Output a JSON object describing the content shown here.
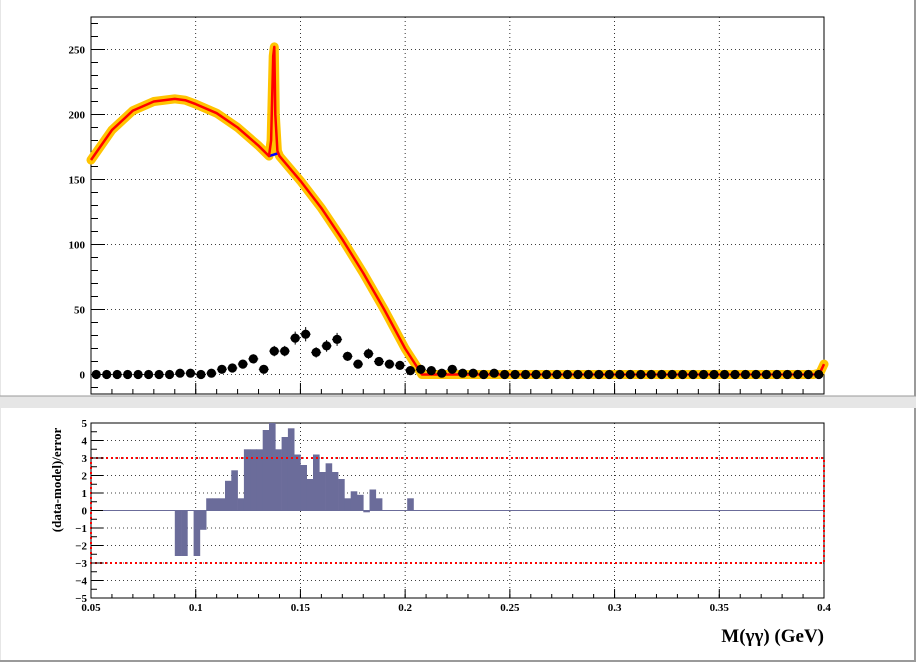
{
  "chart_data": [
    {
      "type": "scatter",
      "panel": "fit",
      "xlim": [
        0.05,
        0.4
      ],
      "ylim": [
        -15,
        275
      ],
      "yticks": [
        0,
        50,
        100,
        150,
        200,
        250
      ],
      "ytick_labels": [
        "0",
        "50",
        "100",
        "150",
        "200",
        "250"
      ],
      "grid": true,
      "title": "",
      "xlabel": "",
      "ylabel": "",
      "series": [
        {
          "kind": "points",
          "color": "#000000",
          "x": [
            0.0525,
            0.0575,
            0.0625,
            0.0675,
            0.0725,
            0.0775,
            0.0825,
            0.0875,
            0.0925,
            0.0975,
            0.1025,
            0.1075,
            0.1125,
            0.1175,
            0.1225,
            0.1275,
            0.1325,
            0.1375,
            0.1425,
            0.1475,
            0.1525,
            0.1575,
            0.1625,
            0.1675,
            0.1725,
            0.1775,
            0.1825,
            0.1875,
            0.1925,
            0.1975,
            0.2025,
            0.2075,
            0.2125,
            0.2175,
            0.2225,
            0.2275,
            0.2325,
            0.2375,
            0.2425,
            0.2475,
            0.2525,
            0.2575,
            0.2625,
            0.2675,
            0.2725,
            0.2775,
            0.2825,
            0.2875,
            0.2925,
            0.2975,
            0.3025,
            0.3075,
            0.3125,
            0.3175,
            0.3225,
            0.3275,
            0.3325,
            0.3375,
            0.3425,
            0.3475,
            0.3525,
            0.3575,
            0.3625,
            0.3675,
            0.3725,
            0.3775,
            0.3825,
            0.3875,
            0.3925,
            0.3975
          ],
          "y": [
            0,
            0,
            0,
            0,
            0,
            0,
            0,
            0,
            1,
            1,
            0,
            1,
            4,
            5,
            8,
            12,
            4,
            18,
            18,
            28,
            31,
            17,
            22,
            27,
            14,
            8,
            16,
            10,
            8,
            7,
            3,
            4,
            3,
            1,
            4,
            1,
            1,
            0,
            1,
            0,
            0,
            0,
            0,
            0,
            0,
            0,
            0,
            0,
            0,
            0,
            0,
            0,
            0,
            0,
            0,
            0,
            0,
            0,
            0,
            0,
            0,
            0,
            0,
            0,
            0,
            0,
            0,
            0,
            0,
            0
          ],
          "err": [
            0,
            0,
            0,
            0,
            0,
            0,
            0,
            0,
            1,
            1,
            0,
            1,
            2,
            2,
            3,
            3.5,
            2,
            4,
            4,
            5,
            5.5,
            4,
            4.5,
            5,
            3.5,
            3,
            4,
            3,
            3,
            2.5,
            1.7,
            2,
            1.7,
            1,
            2,
            1,
            1,
            0,
            1,
            0,
            0,
            0,
            0,
            0,
            0,
            0,
            0,
            0,
            0,
            0,
            0,
            0,
            0,
            0,
            0,
            0,
            0,
            0,
            0,
            0,
            0,
            0,
            0,
            0,
            0,
            0,
            0,
            0,
            0,
            0
          ]
        },
        {
          "kind": "line",
          "color": "#ff0000",
          "band_color": "#ffc400",
          "x": [
            0.05,
            0.06,
            0.07,
            0.08,
            0.09,
            0.095,
            0.1,
            0.11,
            0.12,
            0.13,
            0.135,
            0.136,
            0.137,
            0.1375,
            0.138,
            0.139,
            0.14,
            0.15,
            0.16,
            0.17,
            0.18,
            0.19,
            0.2,
            0.208,
            0.21,
            0.25,
            0.3,
            0.35,
            0.395,
            0.398,
            0.4
          ],
          "y": [
            165,
            188,
            203,
            210,
            212,
            211,
            208,
            201,
            190,
            176,
            168,
            180,
            245,
            252,
            200,
            172,
            168,
            149,
            128,
            104,
            78,
            50,
            20,
            0,
            0,
            0,
            0,
            0,
            0,
            1,
            8
          ]
        },
        {
          "kind": "line",
          "color": "#0000ff",
          "x": [
            0.135,
            0.137,
            0.139
          ],
          "y": [
            168,
            169,
            170
          ]
        }
      ]
    },
    {
      "type": "bar",
      "panel": "residuals",
      "ylabel": "(data-model)/error",
      "xlabel": "M(γγ) (GeV)",
      "xlim": [
        0.05,
        0.4
      ],
      "ylim": [
        -5,
        5
      ],
      "bar_color": "#6b6c9a",
      "band_color": "#ff0000",
      "band": [
        -3,
        3
      ],
      "xticks": [
        0.05,
        0.1,
        0.15,
        0.2,
        0.25,
        0.3,
        0.35,
        0.4
      ],
      "xtick_labels": [
        "0.05",
        "0.1",
        "0.15",
        "0.2",
        "0.25",
        "0.3",
        "0.35",
        "0.4"
      ],
      "yticks": [
        -5,
        -4,
        -3,
        -2,
        -1,
        0,
        1,
        2,
        3,
        4,
        5
      ],
      "ytick_labels": [
        "−5",
        "−4",
        "−3",
        "−2",
        "−1",
        "0",
        "1",
        "2",
        "3",
        "4",
        "5"
      ],
      "bin_width": 0.003,
      "x": [
        0.0915,
        0.0945,
        0.1005,
        0.1035,
        0.1065,
        0.1095,
        0.1125,
        0.1155,
        0.1185,
        0.1215,
        0.1245,
        0.1275,
        0.1305,
        0.1335,
        0.1365,
        0.1395,
        0.1425,
        0.1455,
        0.1485,
        0.1515,
        0.1545,
        0.1575,
        0.1605,
        0.1635,
        0.1665,
        0.1695,
        0.1725,
        0.1755,
        0.1785,
        0.1815,
        0.1845,
        0.1875,
        0.2025
      ],
      "values": [
        -2.6,
        -2.6,
        -2.6,
        -1.1,
        0.7,
        0.7,
        0.7,
        1.7,
        2.3,
        0.7,
        3.5,
        3.5,
        3.5,
        4.6,
        5.0,
        3.5,
        4.2,
        4.7,
        3.2,
        2.6,
        1.8,
        3.2,
        2.2,
        2.7,
        2.2,
        1.8,
        0.7,
        1.1,
        0.9,
        -0.1,
        1.2,
        0.7,
        0.7
      ]
    }
  ]
}
